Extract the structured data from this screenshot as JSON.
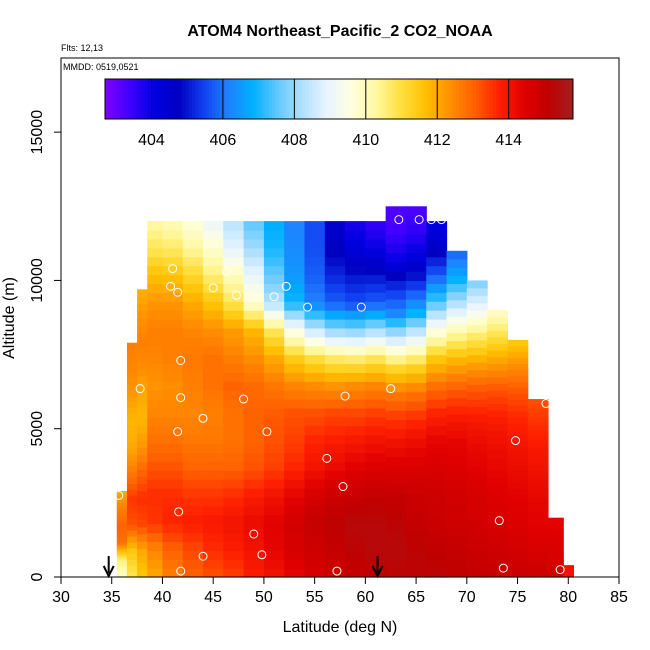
{
  "chart_data": {
    "type": "heatmap",
    "title": "ATOM4 Northeast_Pacific_2 CO2_NOAA",
    "flights_label": "Flts: 12,13",
    "mmdd_label": "MMDD: 0519,0521",
    "xlabel": "Latitude (deg N)",
    "ylabel": "Altitude (m)",
    "xlim": [
      30,
      85
    ],
    "ylim": [
      0,
      17500
    ],
    "x_ticks": [
      "30",
      "35",
      "40",
      "45",
      "50",
      "55",
      "60",
      "65",
      "70",
      "75",
      "80",
      "85"
    ],
    "y_ticks": [
      "0",
      "5000",
      "10000",
      "15000"
    ],
    "colorbar": {
      "min": 402.7,
      "max": 415.8,
      "ticks": [
        "404",
        "406",
        "408",
        "410",
        "412",
        "414"
      ],
      "colors": [
        "#8000ff",
        "#4000ff",
        "#0000e0",
        "#0000c0",
        "#1040f0",
        "#2080ff",
        "#00b0ff",
        "#60c8ff",
        "#b0e0ff",
        "#e8f4ff",
        "#ffffe0",
        "#fff8a0",
        "#ffe040",
        "#ffc000",
        "#ff9000",
        "#ff6000",
        "#ff2000",
        "#e00000",
        "#c00000",
        "#a02020"
      ]
    },
    "grid": false,
    "series": [
      {
        "kind": "curtain-profiles",
        "profiles": [
          {
            "lat": 36.0,
            "top": 2900,
            "v": [
              409.8,
              410.5,
              412.8,
              413.0,
              412.6,
              412.0
            ]
          },
          {
            "lat": 37.0,
            "top": 7900,
            "v": [
              410.8,
              411.5,
              413.2,
              413.5,
              412.7,
              412.0,
              411.8,
              412.2,
              412.5,
              412.6
            ]
          },
          {
            "lat": 38.0,
            "top": 9700,
            "v": [
              411.5,
              412.0,
              413.3,
              413.6,
              413.0,
              412.3,
              411.8,
              412.0,
              412.4,
              412.6,
              412.3,
              411.9
            ]
          },
          {
            "lat": 39.0,
            "top": 12000,
            "v": [
              412.0,
              412.5,
              413.5,
              413.6,
              413.2,
              412.8,
              412.5,
              412.3,
              412.5,
              412.6,
              412.3,
              411.7,
              410.8,
              410.2
            ]
          },
          {
            "lat": 41.0,
            "top": 12000,
            "v": [
              412.6,
              413.0,
              413.7,
              413.6,
              413.2,
              412.8,
              412.5,
              412.4,
              412.6,
              412.6,
              412.3,
              411.6,
              410.7,
              410.0
            ]
          },
          {
            "lat": 43.0,
            "top": 12000,
            "v": [
              413.0,
              413.3,
              413.8,
              413.5,
              413.0,
              412.7,
              412.5,
              412.6,
              412.7,
              412.5,
              412.0,
              411.2,
              410.3,
              409.6
            ]
          },
          {
            "lat": 45.0,
            "top": 12000,
            "v": [
              413.2,
              413.6,
              413.9,
              413.5,
              413.0,
              412.7,
              412.6,
              412.8,
              412.8,
              412.4,
              411.6,
              410.6,
              409.8,
              409.0
            ]
          },
          {
            "lat": 47.0,
            "top": 12000,
            "v": [
              413.4,
              413.8,
              414.0,
              413.6,
              413.0,
              412.8,
              412.8,
              413.0,
              412.6,
              412.2,
              410.9,
              410.0,
              408.9,
              408.3
            ]
          },
          {
            "lat": 49.0,
            "top": 12000,
            "v": [
              413.8,
              414.0,
              414.2,
              413.8,
              413.2,
              413.0,
              413.0,
              412.9,
              412.4,
              411.8,
              409.8,
              409.0,
              408.1,
              407.5
            ]
          },
          {
            "lat": 51.0,
            "top": 12000,
            "v": [
              414.0,
              414.3,
              414.4,
              414.0,
              413.4,
              413.2,
              413.1,
              412.7,
              412.0,
              410.8,
              408.3,
              407.6,
              407.0,
              406.8
            ]
          },
          {
            "lat": 53.0,
            "top": 12000,
            "v": [
              414.3,
              414.6,
              414.7,
              414.3,
              413.7,
              413.4,
              413.2,
              412.5,
              411.4,
              409.5,
              407.0,
              406.5,
              406.3,
              406.2
            ]
          },
          {
            "lat": 55.0,
            "top": 12000,
            "v": [
              414.6,
              414.8,
              415.0,
              414.6,
              414.0,
              413.7,
              413.2,
              412.4,
              411.0,
              408.6,
              406.2,
              405.8,
              405.6,
              405.6
            ]
          },
          {
            "lat": 57.0,
            "top": 12000,
            "v": [
              414.8,
              415.0,
              415.2,
              414.8,
              414.2,
              413.8,
              413.3,
              412.3,
              410.7,
              408.0,
              405.8,
              405.2,
              404.7,
              404.5
            ]
          },
          {
            "lat": 59.0,
            "top": 12000,
            "v": [
              415.0,
              415.2,
              415.3,
              414.9,
              414.4,
              413.9,
              413.3,
              412.4,
              410.6,
              407.9,
              405.6,
              405.0,
              404.2,
              403.8
            ]
          },
          {
            "lat": 61.0,
            "top": 12000,
            "v": [
              415.1,
              415.3,
              415.3,
              415.0,
              414.5,
              414.0,
              413.4,
              412.5,
              410.8,
              408.2,
              405.8,
              405.0,
              404.0,
              403.5
            ]
          },
          {
            "lat": 63.0,
            "top": 12500,
            "v": [
              415.2,
              415.3,
              415.2,
              415.0,
              414.6,
              414.1,
              413.5,
              412.6,
              411.0,
              408.6,
              406.2,
              405.2,
              404.0,
              403.4,
              403.2
            ]
          },
          {
            "lat": 65.0,
            "top": 12500,
            "v": [
              415.2,
              415.2,
              415.0,
              414.9,
              414.6,
              414.2,
              413.6,
              412.7,
              411.2,
              409.0,
              406.8,
              405.4,
              404.2,
              403.6,
              403.2
            ]
          },
          {
            "lat": 67.0,
            "top": 12000,
            "v": [
              415.2,
              415.1,
              414.9,
              414.8,
              414.6,
              414.3,
              413.7,
              412.8,
              411.5,
              409.6,
              407.5,
              405.8,
              404.6,
              404.0
            ]
          },
          {
            "lat": 69.0,
            "top": 11000,
            "v": [
              415.1,
              415.0,
              414.8,
              414.7,
              414.5,
              414.3,
              413.8,
              413.0,
              411.8,
              410.2,
              408.4,
              406.8,
              405.8
            ]
          },
          {
            "lat": 71.0,
            "top": 10000,
            "v": [
              415.0,
              414.9,
              414.7,
              414.6,
              414.4,
              414.2,
              413.8,
              413.1,
              412.0,
              410.6,
              409.0,
              407.7
            ]
          },
          {
            "lat": 73.0,
            "top": 9000,
            "v": [
              415.0,
              414.8,
              414.6,
              414.5,
              414.3,
              414.1,
              413.8,
              413.2,
              412.2,
              411.0,
              409.8
            ]
          },
          {
            "lat": 75.0,
            "top": 8000,
            "v": [
              414.9,
              414.7,
              414.5,
              414.4,
              414.2,
              414.0,
              413.7,
              413.2,
              412.4,
              411.4
            ]
          },
          {
            "lat": 77.0,
            "top": 6000,
            "v": [
              414.9,
              414.6,
              414.4,
              414.3,
              414.1,
              413.9,
              413.6,
              413.2
            ]
          },
          {
            "lat": 79.0,
            "top": 2000,
            "v": [
              414.8,
              414.6,
              414.5,
              414.3
            ]
          },
          {
            "lat": 80.0,
            "top": 400,
            "v": [
              414.0,
              414.0
            ]
          }
        ]
      },
      {
        "kind": "observation-points",
        "points": [
          [
            63.3,
            12050
          ],
          [
            65.3,
            12050
          ],
          [
            66.5,
            12050
          ],
          [
            67.5,
            12050
          ],
          [
            41.0,
            10400
          ],
          [
            40.8,
            9800
          ],
          [
            41.5,
            9600
          ],
          [
            45.0,
            9750
          ],
          [
            46.3,
            10300
          ],
          [
            47.3,
            9500
          ],
          [
            52.2,
            9800
          ],
          [
            51.0,
            9450
          ],
          [
            54.3,
            9100
          ],
          [
            59.6,
            9100
          ],
          [
            41.8,
            7300
          ],
          [
            37.8,
            6350
          ],
          [
            41.8,
            6050
          ],
          [
            44.0,
            5350
          ],
          [
            48.0,
            6000
          ],
          [
            58.0,
            6100
          ],
          [
            62.5,
            6350
          ],
          [
            77.8,
            5850
          ],
          [
            35.4,
            4700
          ],
          [
            41.5,
            4900
          ],
          [
            50.3,
            4900
          ],
          [
            74.8,
            4600
          ],
          [
            56.2,
            4000
          ],
          [
            57.8,
            3050
          ],
          [
            35.7,
            2750
          ],
          [
            41.6,
            2200
          ],
          [
            49.0,
            1450
          ],
          [
            73.2,
            1900
          ],
          [
            44.0,
            700
          ],
          [
            49.8,
            750
          ],
          [
            41.8,
            200
          ],
          [
            57.2,
            200
          ],
          [
            73.6,
            300
          ],
          [
            79.2,
            250
          ]
        ]
      },
      {
        "kind": "arrows",
        "lats": [
          34.7,
          61.2
        ]
      }
    ]
  }
}
